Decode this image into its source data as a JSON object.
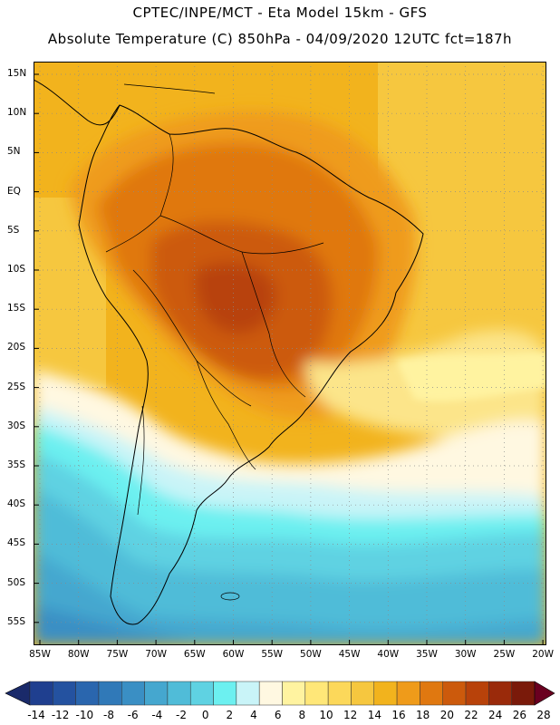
{
  "header": {
    "line1": "CPTEC/INPE/MCT -  Eta Model 15km - GFS",
    "line2": "Absolute Temperature (C) 850hPa - 04/09/2020 12UTC fct=187h"
  },
  "axes": {
    "lat_labels": [
      "15N",
      "10N",
      "5N",
      "EQ",
      "5S",
      "10S",
      "15S",
      "20S",
      "25S",
      "30S",
      "35S",
      "40S",
      "45S",
      "50S",
      "55S"
    ],
    "lon_labels": [
      "85W",
      "80W",
      "75W",
      "70W",
      "65W",
      "60W",
      "55W",
      "50W",
      "45W",
      "40W",
      "35W",
      "30W",
      "25W",
      "20W"
    ]
  },
  "colorbar": {
    "labels": [
      "-14",
      "-12",
      "-10",
      "-8",
      "-6",
      "-4",
      "-2",
      "0",
      "2",
      "4",
      "6",
      "8",
      "10",
      "12",
      "14",
      "16",
      "18",
      "20",
      "22",
      "24",
      "26",
      "28"
    ],
    "colors": [
      "#1f3f8f",
      "#2452a0",
      "#2a66ae",
      "#3079b8",
      "#3a8fc4",
      "#45a7cf",
      "#50bcd8",
      "#5fd2e2",
      "#6cf0f0",
      "#c9f4f8",
      "#fff8e1",
      "#fff3a0",
      "#ffe778",
      "#fcd85a",
      "#f6c73f",
      "#f2b31d",
      "#ef9b1a",
      "#e07810",
      "#cc5a0c",
      "#b8420a",
      "#9a2a0a",
      "#7a1a0a"
    ],
    "low_arrow_color": "#1a2a6a",
    "high_arrow_color": "#6a0020"
  },
  "colors": {
    "ocean_warm": "#f2b31d",
    "land_hot": "#cc5a0c",
    "cold_ocean": "#45a7cf",
    "frame": "#000000"
  }
}
